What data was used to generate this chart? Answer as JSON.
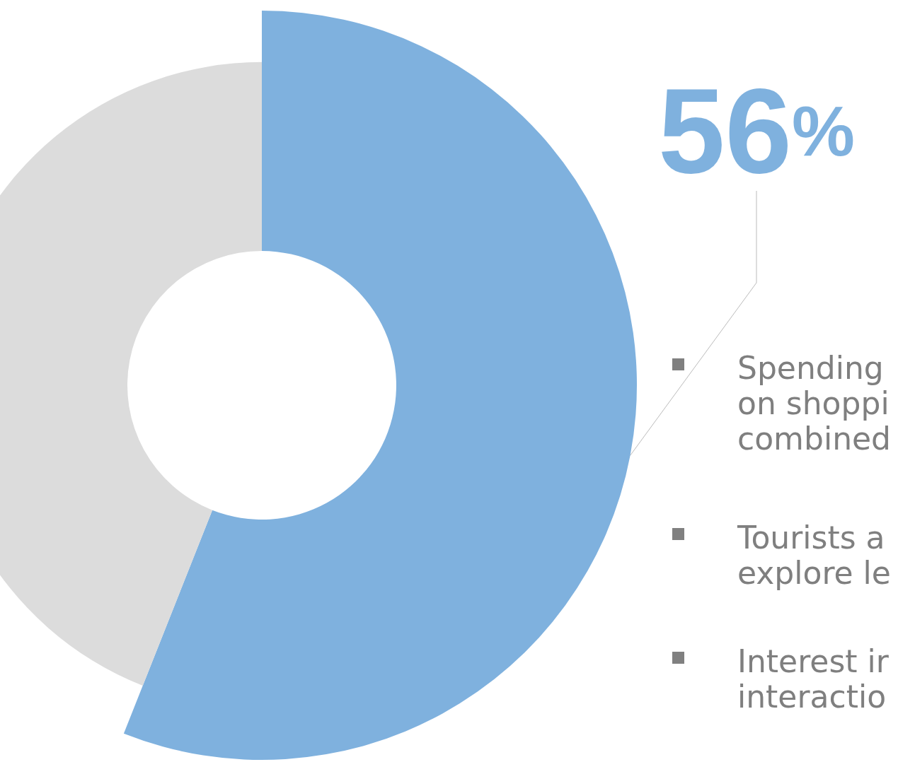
{
  "chart_data": {
    "type": "donut",
    "categories": [
      null,
      null
    ],
    "values": [
      56,
      44
    ],
    "colors": [
      "#5b9bd5",
      "#dcdcdc"
    ],
    "value_labels": [
      "56%",
      null
    ],
    "annotations": [
      "Spending\non shoppi\ncombined",
      "Tourists a\nexplore le",
      "Interest ir\ninteractio"
    ]
  }
}
